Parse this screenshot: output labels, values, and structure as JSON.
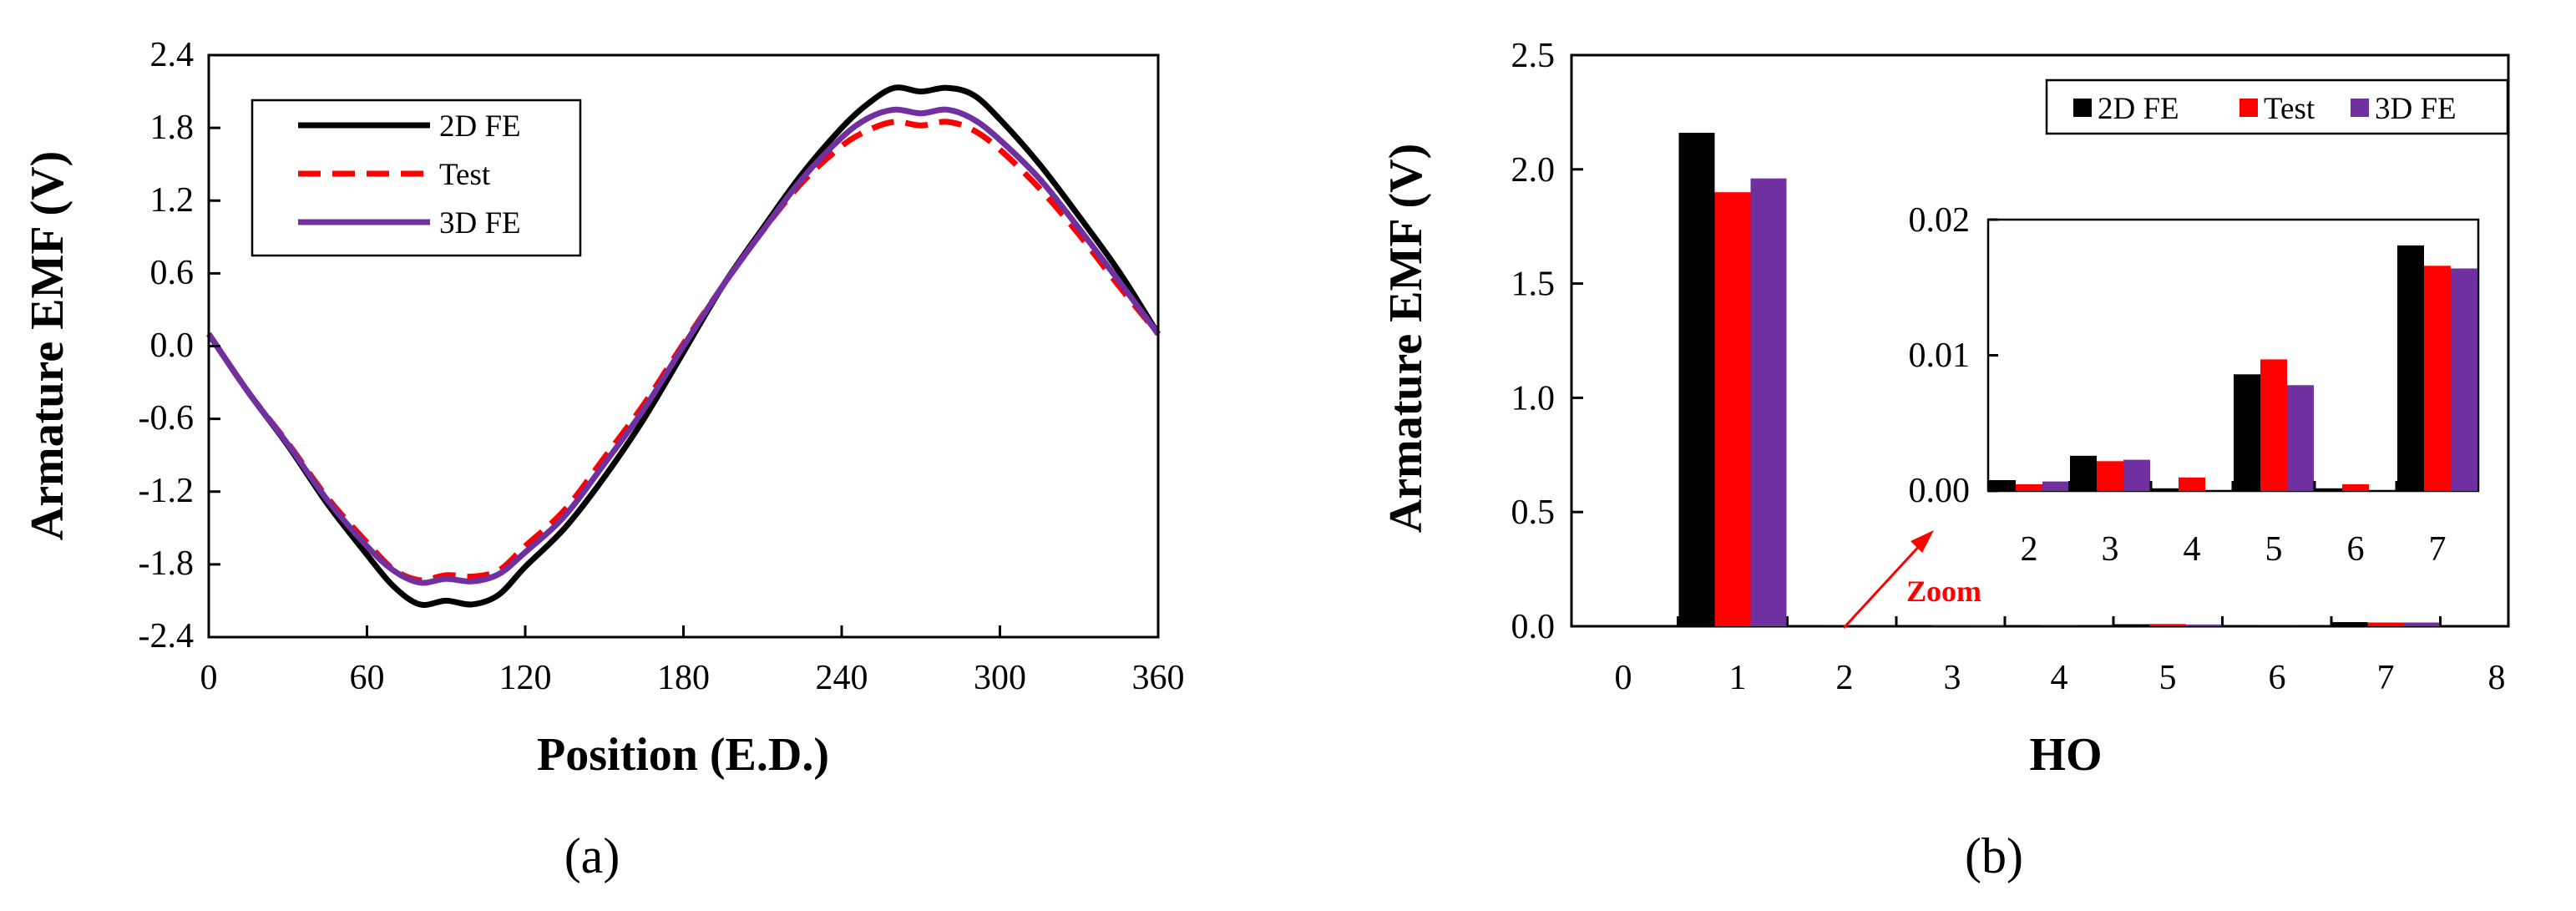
{
  "chart_data": [
    {
      "type": "line",
      "panel_label": "(a)",
      "xlabel": "Position (E.D.)",
      "ylabel": "Armature EMF (V)",
      "xlim": [
        0,
        360
      ],
      "ylim": [
        -2.4,
        2.4
      ],
      "xticks": [
        "0",
        "60",
        "120",
        "180",
        "240",
        "300",
        "360"
      ],
      "yticks": [
        "2.4",
        "1.8",
        "1.2",
        "0.6",
        "0.0",
        "-0.6",
        "-1.2",
        "-1.8",
        "-2.4"
      ],
      "legend": {
        "placement": "top-left",
        "entries": [
          "2D FE",
          "Test",
          "3D FE"
        ]
      },
      "x": [
        0,
        15,
        30,
        45,
        60,
        70,
        80,
        90,
        100,
        110,
        120,
        135,
        150,
        165,
        180,
        195,
        210,
        225,
        240,
        250,
        260,
        270,
        280,
        290,
        300,
        315,
        330,
        345,
        360
      ],
      "series": [
        {
          "name": "2D FE",
          "color": "#000000",
          "dash": "solid",
          "values": [
            0.1,
            -0.38,
            -0.82,
            -1.3,
            -1.72,
            -1.98,
            -2.13,
            -2.1,
            -2.13,
            -2.05,
            -1.82,
            -1.5,
            -1.08,
            -0.6,
            -0.05,
            0.5,
            0.97,
            1.42,
            1.8,
            2.0,
            2.13,
            2.1,
            2.13,
            2.07,
            1.87,
            1.5,
            1.07,
            0.62,
            0.1
          ]
        },
        {
          "name": "Test",
          "color": "#ff0000",
          "dash": "dashed",
          "values": [
            0.1,
            -0.38,
            -0.8,
            -1.25,
            -1.62,
            -1.84,
            -1.93,
            -1.89,
            -1.9,
            -1.85,
            -1.65,
            -1.35,
            -0.92,
            -0.48,
            0.02,
            0.5,
            0.95,
            1.35,
            1.65,
            1.78,
            1.85,
            1.82,
            1.85,
            1.78,
            1.62,
            1.3,
            0.92,
            0.5,
            0.1
          ]
        },
        {
          "name": "3D FE",
          "color": "#7030a0",
          "dash": "solid",
          "values": [
            0.1,
            -0.38,
            -0.81,
            -1.27,
            -1.65,
            -1.85,
            -1.95,
            -1.92,
            -1.94,
            -1.88,
            -1.7,
            -1.4,
            -0.97,
            -0.52,
            0.0,
            0.5,
            0.95,
            1.38,
            1.72,
            1.88,
            1.95,
            1.92,
            1.95,
            1.87,
            1.7,
            1.38,
            0.97,
            0.54,
            0.1
          ]
        }
      ]
    },
    {
      "type": "bar",
      "panel_label": "(b)",
      "xlabel": "HO",
      "ylabel": "Armature EMF (V)",
      "ylim": [
        0,
        2.5
      ],
      "categories": [
        "0",
        "1",
        "2",
        "3",
        "4",
        "5",
        "6",
        "7",
        "8"
      ],
      "yticks": [
        "2.5",
        "2.0",
        "1.5",
        "1.0",
        "0.5",
        "0.0"
      ],
      "legend": {
        "placement": "top-right",
        "entries": [
          "2D FE",
          "Test",
          "3D FE"
        ]
      },
      "series": [
        {
          "name": "2D FE",
          "color": "#000000",
          "values": [
            0,
            2.16,
            0.0008,
            0.0026,
            0.0002,
            0.0086,
            0.0002,
            0.0181,
            0
          ]
        },
        {
          "name": "Test",
          "color": "#ff0000",
          "values": [
            0,
            1.9,
            0.0005,
            0.0022,
            0.001,
            0.0097,
            0.0005,
            0.0166,
            0
          ]
        },
        {
          "name": "3D FE",
          "color": "#7030a0",
          "values": [
            0,
            1.96,
            0.0007,
            0.0023,
            0.0,
            0.0078,
            0.0,
            0.0164,
            0
          ]
        }
      ],
      "inset": {
        "label": "Zoom",
        "categories": [
          "2",
          "3",
          "4",
          "5",
          "6",
          "7"
        ],
        "ylim": [
          0,
          0.02
        ],
        "yticks": [
          "0.02",
          "0.01",
          "0.00"
        ]
      }
    }
  ]
}
